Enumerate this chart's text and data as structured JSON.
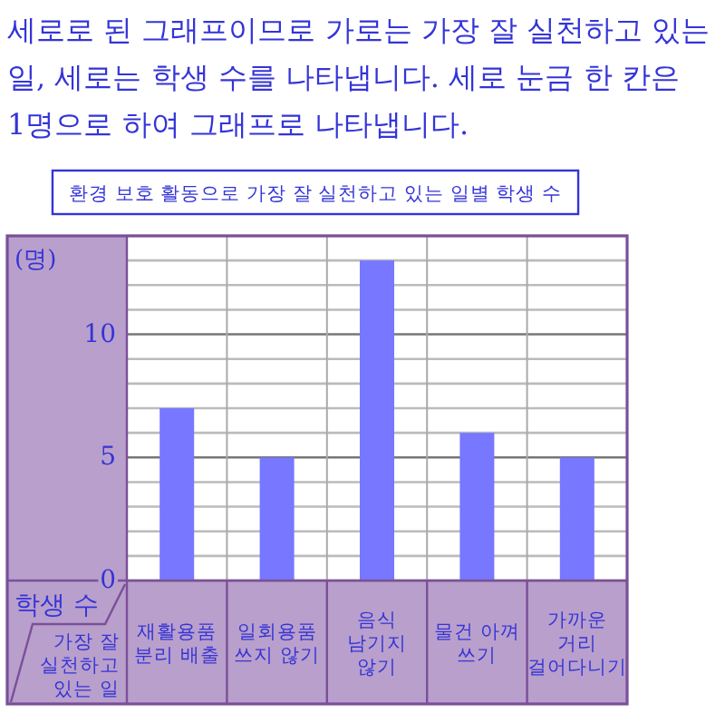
{
  "chart_data": {
    "type": "bar",
    "title": "환경 보호 활동으로 가장 잘 실천하고 있는 일별 학생 수",
    "annotations": [
      "세로로 된 그래프이므로 가로는 가장 잘 실천하고 있는 일, 세로는 학생 수를 나타냅니다. 세로 눈금 한 칸은 1명으로 하여 그래프로 나타냅니다.",
      "(명)"
    ],
    "ylabel": "학생 수",
    "xlabel": "가장 잘 실천하고 있는 일",
    "categories": [
      "재활용품 분리 배출",
      "일회용품 쓰지 않기",
      "음식 남기지 않기",
      "물건 아껴 쓰기",
      "가까운 거리 걸어다니기"
    ],
    "values": [
      7,
      5,
      13,
      6,
      5
    ],
    "color": "#7777ff",
    "ylim": [
      0,
      14
    ],
    "yticks": [
      0,
      5,
      10
    ],
    "grid": true
  }
}
